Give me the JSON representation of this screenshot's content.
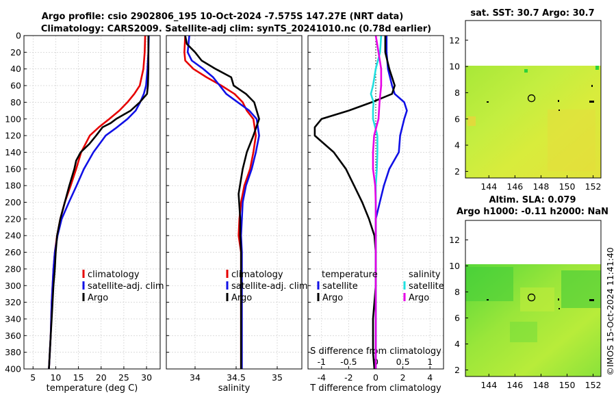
{
  "figure": {
    "title_line1": "Argo profile: csio 2902806_195 10-Oct-2024 -7.575S 147.27E (NRT data)",
    "title_line2": "Climatology: CARS2009. Satellite-adj clim: synTS_20241010.nc (0.78d earlier)",
    "credit": "©IMOS 15-Oct-2024 11:41:40"
  },
  "chart_data": [
    {
      "id": "temperature",
      "type": "line",
      "xlabel": "temperature (deg C)",
      "xlim": [
        3,
        33
      ],
      "xticks": [
        5,
        10,
        15,
        20,
        25,
        30
      ],
      "ylim": [
        0,
        400
      ],
      "yticks": [
        0,
        20,
        40,
        60,
        80,
        100,
        120,
        140,
        160,
        180,
        200,
        220,
        240,
        260,
        280,
        300,
        320,
        340,
        360,
        380,
        400
      ],
      "legend": [
        "climatology",
        "satellite-adj. clim",
        "Argo"
      ],
      "series": [
        {
          "name": "climatology",
          "color": "#e60000",
          "x": [
            29.7,
            29.6,
            29.3,
            28.5,
            27.3,
            25.8,
            24.0,
            21.8,
            19.5,
            17.5,
            15.6,
            14.5,
            13.3,
            12.0,
            11.0,
            10.3,
            9.8,
            9.5,
            9.3,
            9.1,
            9.0,
            8.9,
            8.7,
            8.5
          ],
          "y": [
            0,
            20,
            40,
            60,
            70,
            80,
            90,
            100,
            110,
            120,
            140,
            160,
            180,
            200,
            220,
            240,
            260,
            280,
            300,
            320,
            340,
            360,
            380,
            400
          ]
        },
        {
          "name": "satellite-adj. clim",
          "color": "#1010e6",
          "x": [
            30.5,
            30.4,
            30.2,
            29.9,
            29.4,
            28.6,
            27.6,
            25.8,
            23.5,
            21.0,
            18.3,
            16.2,
            14.6,
            12.9,
            11.3,
            10.4,
            9.8,
            9.5,
            9.3,
            9.1,
            9.0,
            8.9,
            8.7,
            8.5
          ],
          "y": [
            0,
            20,
            40,
            60,
            70,
            80,
            90,
            100,
            110,
            120,
            140,
            160,
            180,
            200,
            220,
            240,
            260,
            280,
            300,
            320,
            340,
            360,
            380,
            400
          ]
        },
        {
          "name": "Argo",
          "color": "#000000",
          "x": [
            30.4,
            30.4,
            30.4,
            30.3,
            30.1,
            28.5,
            26.5,
            23.3,
            22.1,
            20.3,
            18.9,
            17.4,
            15.5,
            14.5,
            14.1,
            13.0,
            12.0,
            11.0,
            10.3,
            10.0,
            9.8,
            9.5,
            9.3,
            9.1,
            8.9,
            8.7,
            8.5
          ],
          "y": [
            0,
            20,
            40,
            60,
            70,
            80,
            90,
            100,
            105,
            110,
            120,
            130,
            140,
            150,
            160,
            180,
            200,
            220,
            240,
            260,
            280,
            300,
            320,
            340,
            360,
            380,
            400
          ]
        }
      ]
    },
    {
      "id": "salinity",
      "type": "line",
      "xlabel": "salinity",
      "xlim": [
        33.65,
        35.3
      ],
      "xticks": [
        34,
        34.5,
        35
      ],
      "ylim": [
        0,
        400
      ],
      "legend": [
        "climatology",
        "satellite-adj. clim",
        "Argo"
      ],
      "series": [
        {
          "name": "climatology",
          "color": "#e60000",
          "x": [
            33.88,
            33.87,
            33.88,
            33.98,
            34.14,
            34.32,
            34.48,
            34.58,
            34.63,
            34.71,
            34.74,
            34.71,
            34.67,
            34.6,
            34.56,
            34.54,
            34.53,
            34.56,
            34.56,
            34.56,
            34.56,
            34.56,
            34.56
          ],
          "y": [
            0,
            20,
            30,
            40,
            50,
            60,
            70,
            80,
            90,
            100,
            120,
            140,
            160,
            180,
            200,
            220,
            240,
            260,
            280,
            300,
            340,
            370,
            400
          ]
        },
        {
          "name": "satellite-adj. clim",
          "color": "#1010e6",
          "x": [
            33.93,
            33.91,
            33.96,
            34.1,
            34.22,
            34.3,
            34.38,
            34.52,
            34.66,
            34.75,
            34.78,
            34.74,
            34.69,
            34.62,
            34.58,
            34.57,
            34.56,
            34.57,
            34.57,
            34.57,
            34.57,
            34.57
          ],
          "y": [
            0,
            20,
            30,
            40,
            50,
            60,
            70,
            80,
            90,
            100,
            120,
            140,
            160,
            180,
            200,
            220,
            240,
            260,
            280,
            300,
            350,
            400
          ]
        },
        {
          "name": "Argo",
          "color": "#000000",
          "x": [
            33.88,
            33.9,
            34.0,
            34.08,
            34.25,
            34.44,
            34.47,
            34.62,
            34.72,
            34.78,
            34.71,
            34.63,
            34.58,
            34.53,
            34.55,
            34.55,
            34.56,
            34.56,
            34.56,
            34.56,
            34.56
          ],
          "y": [
            0,
            10,
            20,
            30,
            40,
            50,
            60,
            70,
            80,
            100,
            120,
            140,
            160,
            190,
            220,
            240,
            260,
            280,
            300,
            350,
            400
          ]
        }
      ]
    },
    {
      "id": "differences",
      "type": "line",
      "xlabel": "T difference from climatology",
      "xlabel_top": "S difference from climatology",
      "xlim": [
        -5,
        5
      ],
      "xticks": [
        -4,
        -2,
        0,
        2,
        4
      ],
      "xlim_top": [
        -1.25,
        1.25
      ],
      "xticks_top": [
        -1,
        -0.5,
        0,
        0.5,
        1
      ],
      "xticklabels_top": [
        "-1",
        "-0.5",
        "0",
        "0.5",
        "1"
      ],
      "ylim": [
        0,
        400
      ],
      "legend_temperature_title": "temperature",
      "legend_salinity_title": "salinity",
      "legend_temperature": [
        "satellite",
        "Argo"
      ],
      "legend_salinity": [
        "satellite",
        "Argo"
      ],
      "series": [
        {
          "name": "temperature satellite",
          "axis": "T",
          "color": "#1010e6",
          "x": [
            0.8,
            0.8,
            0.9,
            1.2,
            1.4,
            2.1,
            2.3,
            2.1,
            1.8,
            1.7,
            1.0,
            0.6,
            0.3,
            0.0,
            0.0,
            0.0,
            0.0,
            0.0,
            0.0,
            0.0,
            0.0,
            0.0
          ],
          "y": [
            0,
            20,
            40,
            60,
            70,
            80,
            90,
            100,
            120,
            140,
            160,
            180,
            200,
            220,
            240,
            260,
            280,
            300,
            320,
            340,
            360,
            400
          ]
        },
        {
          "name": "temperature Argo",
          "axis": "T",
          "color": "#000000",
          "x": [
            0.7,
            0.7,
            1.0,
            1.4,
            1.2,
            -0.3,
            -2.0,
            -4.0,
            -4.5,
            -4.5,
            -3.1,
            -2.2,
            -1.6,
            -1.0,
            -0.5,
            -0.1,
            0.0,
            0.0,
            0.0,
            -0.1,
            -0.2,
            -0.2,
            -0.2,
            -0.1
          ],
          "y": [
            0,
            20,
            40,
            60,
            70,
            80,
            90,
            100,
            110,
            120,
            140,
            160,
            180,
            200,
            220,
            240,
            260,
            280,
            300,
            320,
            340,
            360,
            380,
            400
          ]
        },
        {
          "name": "salinity satellite",
          "axis": "S",
          "color": "#20e0e0",
          "x": [
            0.1,
            0.08,
            0.0,
            -0.05,
            -0.09,
            -0.04,
            -0.05,
            -0.05,
            0.03,
            0.03,
            0.02,
            0.0,
            0.0,
            0.0,
            0.0
          ],
          "y": [
            0,
            20,
            40,
            60,
            70,
            80,
            90,
            100,
            120,
            140,
            160,
            180,
            200,
            300,
            400
          ]
        },
        {
          "name": "salinity Argo",
          "axis": "S",
          "color": "#e600e6",
          "x": [
            0.0,
            0.05,
            0.1,
            0.1,
            0.07,
            0.05,
            -0.03,
            -0.05,
            -0.05,
            -0.01,
            0.0,
            0.0,
            0.0,
            0.0
          ],
          "y": [
            0,
            20,
            40,
            60,
            80,
            100,
            120,
            140,
            160,
            180,
            200,
            260,
            320,
            400
          ]
        }
      ]
    },
    {
      "id": "sst_map",
      "type": "heatmap",
      "title": "sat. SST: 30.7 Argo: 30.7",
      "xlim": [
        142.2,
        152.6
      ],
      "ylim": [
        1.5,
        13.5
      ],
      "xticks": [
        144,
        146,
        148,
        150,
        152
      ],
      "yticks": [
        2,
        4,
        6,
        8,
        10,
        12
      ],
      "data_top": 10,
      "argo_position": [
        147.27,
        7.575
      ]
    },
    {
      "id": "sla_map",
      "type": "heatmap",
      "title_line1": "Altim. SLA: 0.079",
      "title_line2": "Argo h1000: -0.11 h2000: NaN",
      "xlim": [
        142.2,
        152.6
      ],
      "ylim": [
        1.5,
        13.5
      ],
      "xticks": [
        144,
        146,
        148,
        150,
        152
      ],
      "yticks": [
        2,
        4,
        6,
        8,
        10,
        12
      ],
      "data_top": 10,
      "argo_position": [
        147.27,
        7.575
      ]
    }
  ]
}
